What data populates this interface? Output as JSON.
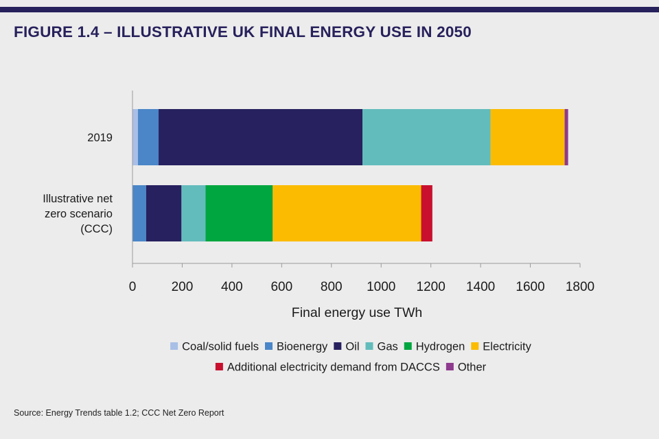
{
  "title": "FIGURE 1.4 – ILLUSTRATIVE UK FINAL ENERGY USE IN 2050",
  "source": "Source: Energy Trends table 1.2; CCC Net Zero Report",
  "chart_data": {
    "type": "bar",
    "orientation": "horizontal",
    "stacked": true,
    "categories": [
      "2019",
      "Illustrative net zero scenario (CCC)"
    ],
    "category_label_lines": [
      [
        "2019"
      ],
      [
        "Illustrative net",
        "zero scenario",
        "(CCC)"
      ]
    ],
    "series": [
      {
        "name": "Coal/solid fuels",
        "color": "#a9bfe6",
        "values": [
          22,
          0
        ]
      },
      {
        "name": "Bioenergy",
        "color": "#4a86c8",
        "values": [
          83,
          55
        ]
      },
      {
        "name": "Oil",
        "color": "#27215f",
        "values": [
          820,
          142
        ]
      },
      {
        "name": "Gas",
        "color": "#63bcbc",
        "values": [
          515,
          97
        ]
      },
      {
        "name": "Hydrogen",
        "color": "#00a63f",
        "values": [
          0,
          270
        ]
      },
      {
        "name": "Electricity",
        "color": "#fbbb00",
        "values": [
          298,
          597
        ]
      },
      {
        "name": "Additional electricity demand from DACCS",
        "color": "#c8102e",
        "values": [
          0,
          45
        ]
      },
      {
        "name": "Other",
        "color": "#8e3a8e",
        "values": [
          14,
          0
        ]
      }
    ],
    "xlabel": "Final energy use TWh",
    "ylabel": "",
    "xlim": [
      0,
      1800
    ],
    "xticks": [
      0,
      200,
      400,
      600,
      800,
      1000,
      1200,
      1400,
      1600,
      1800
    ],
    "grid": false,
    "legend_position": "bottom",
    "legend_rows": [
      [
        "Coal/solid fuels",
        "Bioenergy",
        "Oil",
        "Gas",
        "Hydrogen",
        "Electricity"
      ],
      [
        "Additional electricity demand from DACCS",
        "Other"
      ]
    ]
  }
}
